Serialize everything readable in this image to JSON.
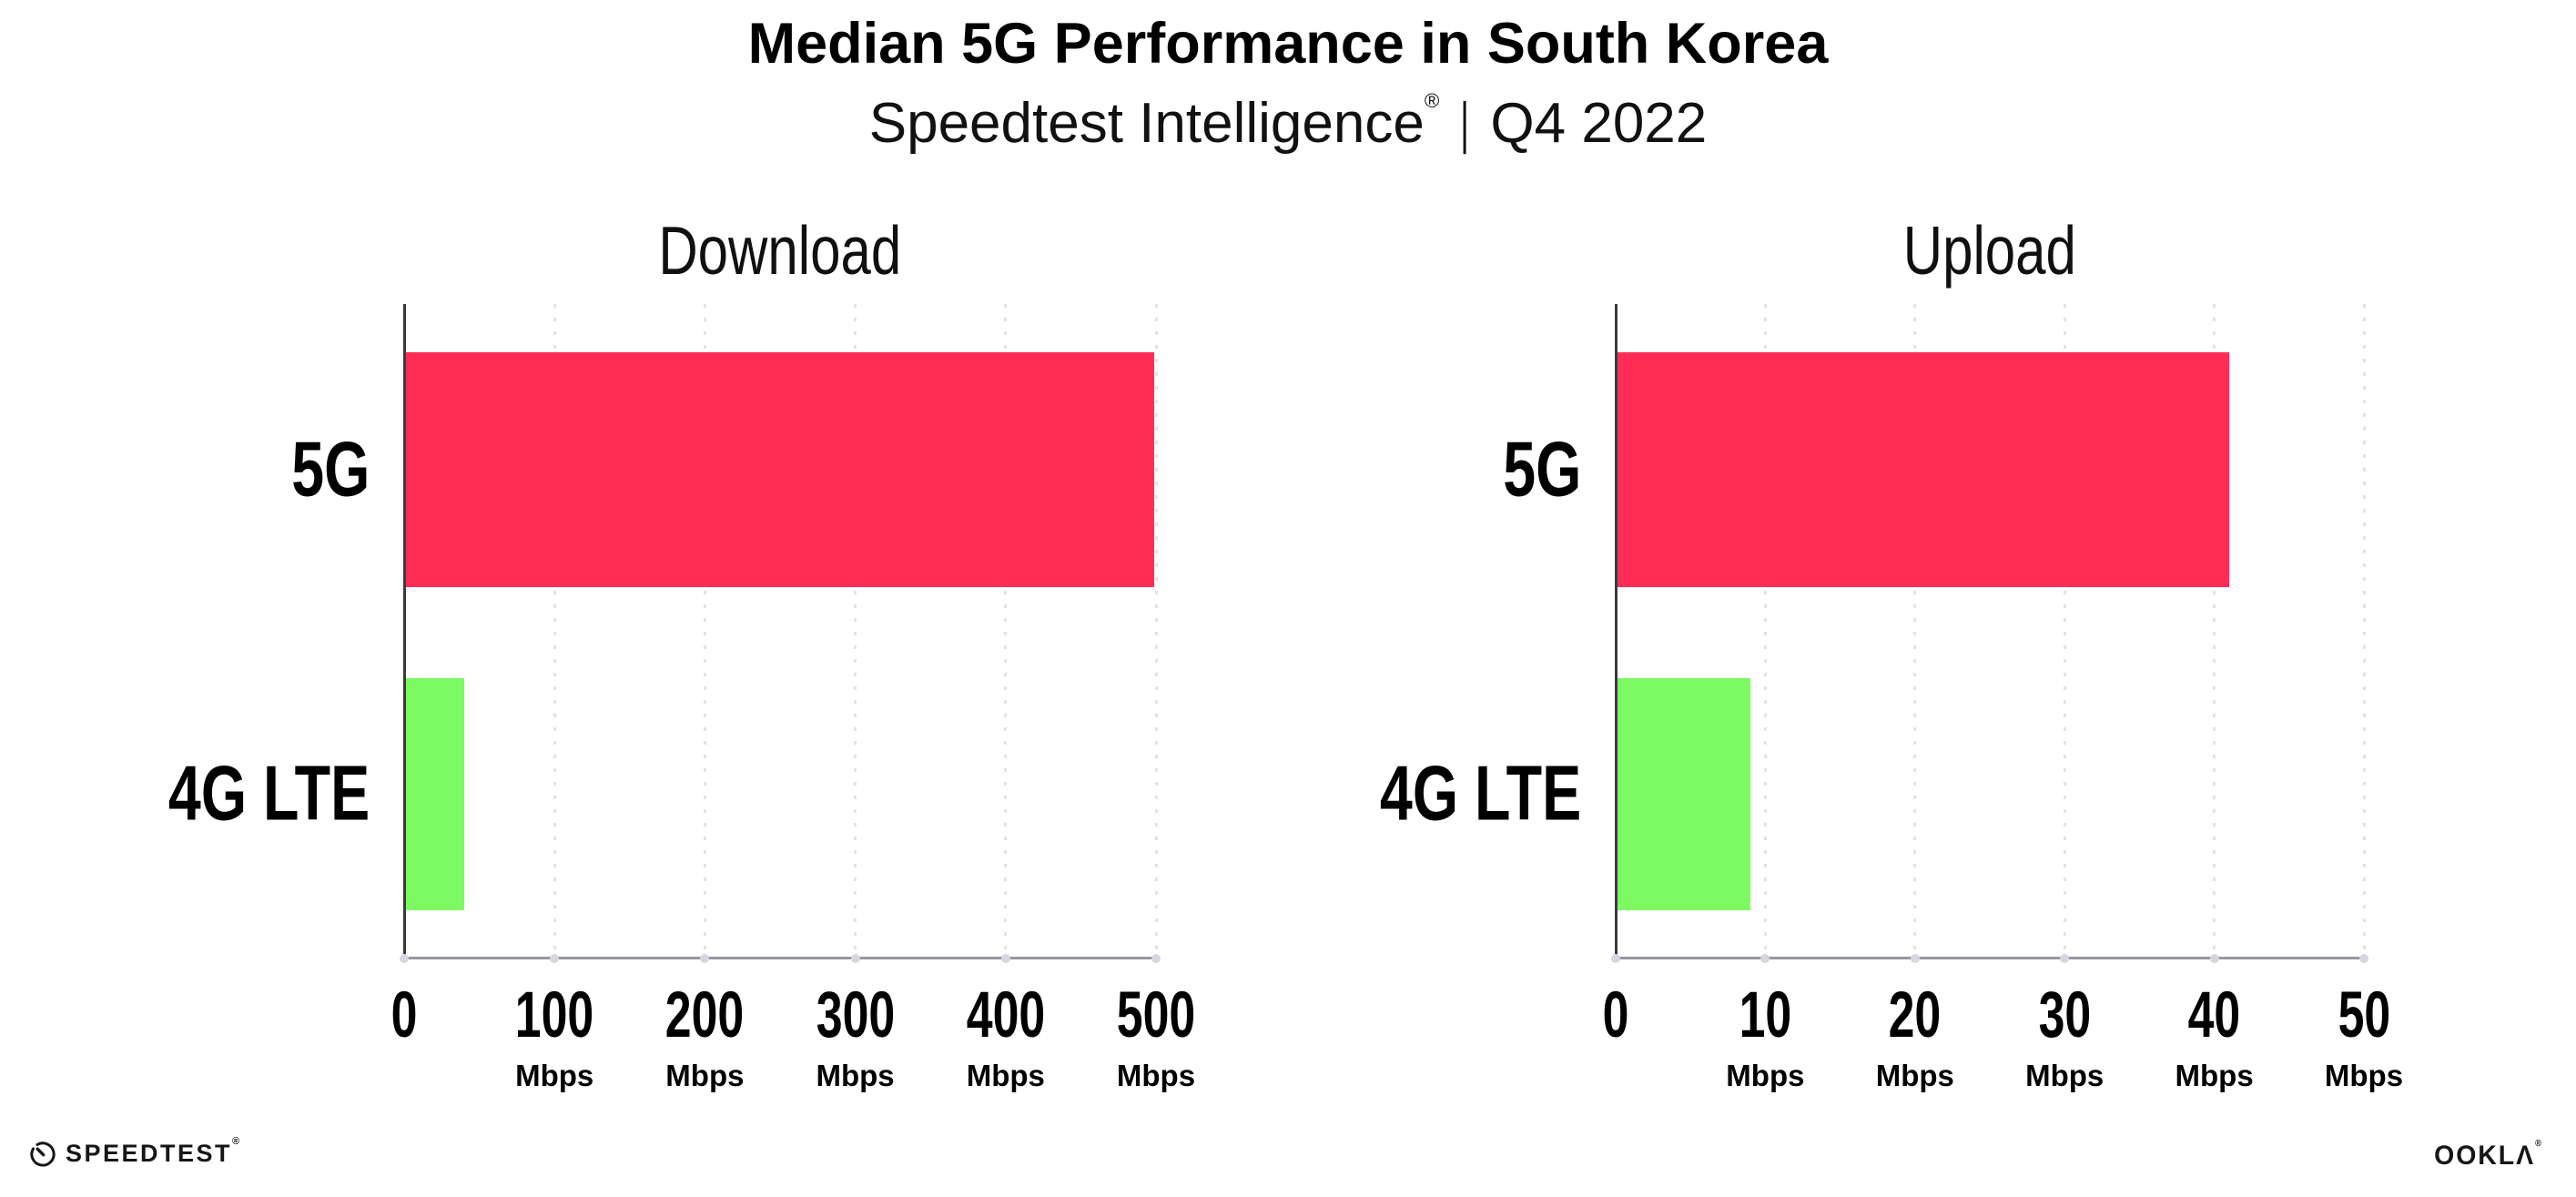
{
  "header": {
    "title": "Median 5G Performance in South Korea",
    "subtitle_brand": "Speedtest Intelligence",
    "subtitle_reg": "®",
    "subtitle_divider": "|",
    "subtitle_period": "Q4 2022"
  },
  "colors": {
    "bar_5g": "#FF2D55",
    "bar_4g_lte": "#7DFA62",
    "gridline": "#E2E2EC",
    "axis_line": "#97979D",
    "spine": "#3A3A3E",
    "tick_dot": "#D6D6E0",
    "text": "#000000"
  },
  "chart_data": [
    {
      "id": "download",
      "type": "bar",
      "orientation": "horizontal",
      "title": "Download",
      "categories": [
        "5G",
        "4G LTE"
      ],
      "values": [
        499,
        40
      ],
      "bar_colors": [
        "#FF2D55",
        "#7DFA62"
      ],
      "unit": "Mbps",
      "xlim": [
        0,
        500
      ],
      "xticks": [
        {
          "label": "0",
          "unit": ""
        },
        {
          "label": "100",
          "unit": "Mbps"
        },
        {
          "label": "200",
          "unit": "Mbps"
        },
        {
          "label": "300",
          "unit": "Mbps"
        },
        {
          "label": "400",
          "unit": "Mbps"
        },
        {
          "label": "500",
          "unit": "Mbps"
        }
      ],
      "grid": "vertical-dotted",
      "legend": "none"
    },
    {
      "id": "upload",
      "type": "bar",
      "orientation": "horizontal",
      "title": "Upload",
      "categories": [
        "5G",
        "4G LTE"
      ],
      "values": [
        41,
        9
      ],
      "bar_colors": [
        "#FF2D55",
        "#7DFA62"
      ],
      "unit": "Mbps",
      "xlim": [
        0,
        50
      ],
      "xticks": [
        {
          "label": "0",
          "unit": ""
        },
        {
          "label": "10",
          "unit": "Mbps"
        },
        {
          "label": "20",
          "unit": "Mbps"
        },
        {
          "label": "30",
          "unit": "Mbps"
        },
        {
          "label": "40",
          "unit": "Mbps"
        },
        {
          "label": "50",
          "unit": "Mbps"
        }
      ],
      "grid": "vertical-dotted",
      "legend": "none"
    }
  ],
  "footer": {
    "speedtest_icon": "gauge-icon",
    "speedtest_label": "SPEEDTEST",
    "speedtest_reg": "®",
    "ookla_label": "OOKLΛ",
    "ookla_reg": "®"
  }
}
